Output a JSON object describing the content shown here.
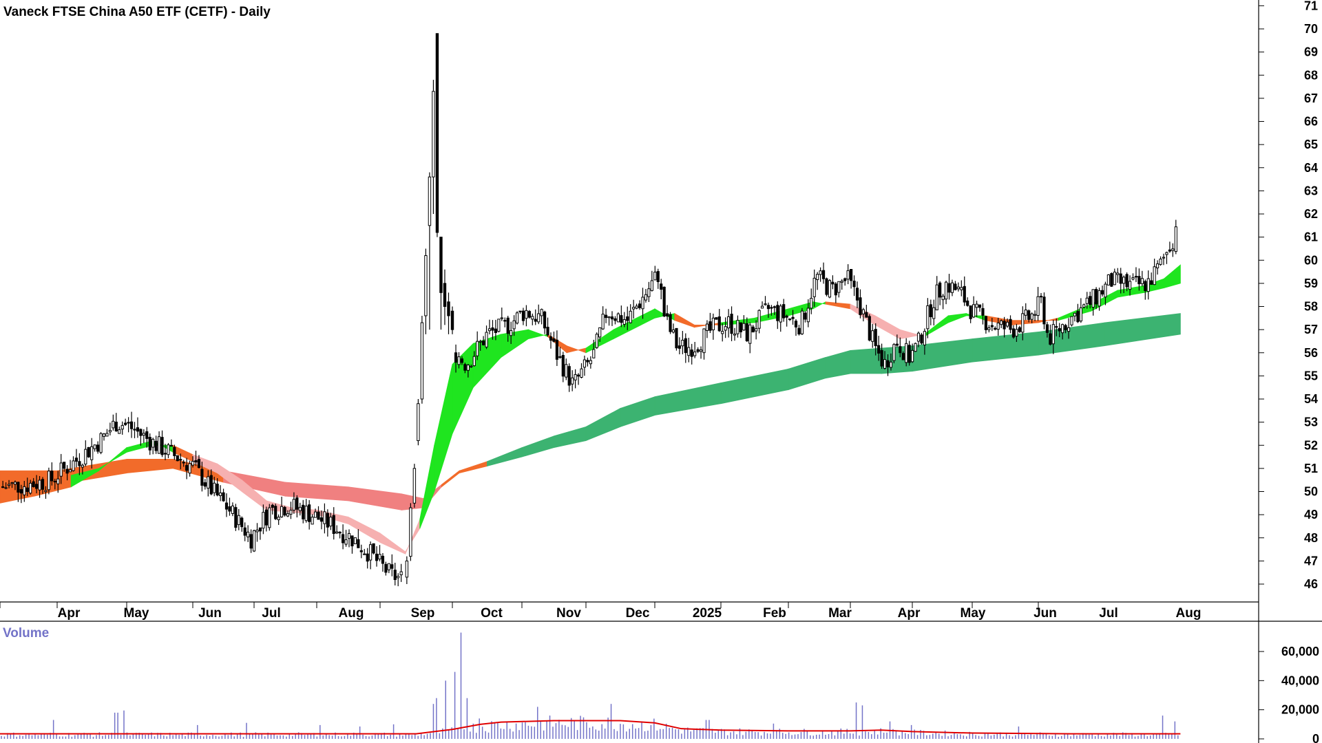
{
  "chart_data": {
    "type": "candlestick",
    "title": "Vaneck FTSE China A50 ETF (CETF) - Daily",
    "price_axis": {
      "ylim": [
        45,
        71.3
      ],
      "ticks": [
        71,
        70,
        69,
        68,
        67,
        66,
        65,
        64,
        63,
        62,
        61,
        60,
        59,
        58,
        57,
        56,
        55,
        54,
        53,
        52,
        51,
        50,
        49,
        48,
        47,
        46
      ]
    },
    "time_axis": {
      "month_labels": [
        "Apr",
        "May",
        "Jun",
        "Jul",
        "Aug",
        "Sep",
        "Oct",
        "Nov",
        "Dec",
        "2025",
        "Feb",
        "Mar",
        "Apr",
        "May",
        "Jun",
        "Jul",
        "Aug"
      ]
    },
    "price_keypoints": [
      {
        "m": 0.0,
        "p": 50.2
      },
      {
        "m": 0.5,
        "p": 50.3
      },
      {
        "m": 0.9,
        "p": 50.5
      },
      {
        "m": 1.3,
        "p": 51.4
      },
      {
        "m": 1.65,
        "p": 52.3
      },
      {
        "m": 1.85,
        "p": 53.0
      },
      {
        "m": 2.05,
        "p": 52.8
      },
      {
        "m": 2.35,
        "p": 52.2
      },
      {
        "m": 2.7,
        "p": 51.6
      },
      {
        "m": 3.0,
        "p": 51.1
      },
      {
        "m": 3.3,
        "p": 50.1
      },
      {
        "m": 3.6,
        "p": 49.2
      },
      {
        "m": 3.95,
        "p": 48.0
      },
      {
        "m": 4.25,
        "p": 49.2
      },
      {
        "m": 4.55,
        "p": 49.4
      },
      {
        "m": 4.85,
        "p": 49.1
      },
      {
        "m": 5.2,
        "p": 48.6
      },
      {
        "m": 5.55,
        "p": 48.0
      },
      {
        "m": 5.85,
        "p": 47.3
      },
      {
        "m": 6.15,
        "p": 46.4
      },
      {
        "m": 6.32,
        "p": 46.2
      }
    ],
    "oct_candles": [
      {
        "o": 46.3,
        "h": 47.2,
        "l": 46.0,
        "c": 47.0
      },
      {
        "o": 47.2,
        "h": 49.5,
        "l": 47.0,
        "c": 49.3
      },
      {
        "o": 49.5,
        "h": 51.2,
        "l": 49.3,
        "c": 51.0
      },
      {
        "o": 52.2,
        "h": 54.0,
        "l": 52.0,
        "c": 53.8
      },
      {
        "o": 54.0,
        "h": 57.6,
        "l": 53.8,
        "c": 57.3
      },
      {
        "o": 57.6,
        "h": 60.5,
        "l": 56.8,
        "c": 60.2
      },
      {
        "o": 61.5,
        "h": 63.8,
        "l": 57.0,
        "c": 63.6
      },
      {
        "o": 63.6,
        "h": 67.8,
        "l": 62.0,
        "c": 67.3
      },
      {
        "o": 69.8,
        "h": 69.8,
        "l": 61.0,
        "c": 61.2
      },
      {
        "o": 61.0,
        "h": 61.0,
        "l": 57.0,
        "c": 58.6
      },
      {
        "o": 59.0,
        "h": 59.6,
        "l": 57.2,
        "c": 58.0
      },
      {
        "o": 58.2,
        "h": 58.6,
        "l": 56.8,
        "c": 57.6
      },
      {
        "o": 57.8,
        "h": 58.0,
        "l": 56.8,
        "c": 57.0
      }
    ],
    "post_keypoints": [
      {
        "m": 7.05,
        "p": 56.0
      },
      {
        "m": 7.2,
        "p": 55.5
      },
      {
        "m": 7.5,
        "p": 56.8
      },
      {
        "m": 7.8,
        "p": 57.2
      },
      {
        "m": 8.05,
        "p": 57.8
      },
      {
        "m": 8.3,
        "p": 57.5
      },
      {
        "m": 8.55,
        "p": 55.9
      },
      {
        "m": 8.8,
        "p": 54.6
      },
      {
        "m": 9.1,
        "p": 55.8
      },
      {
        "m": 9.3,
        "p": 57.8
      },
      {
        "m": 9.6,
        "p": 57.4
      },
      {
        "m": 9.85,
        "p": 58.5
      },
      {
        "m": 10.05,
        "p": 59.4
      },
      {
        "m": 10.15,
        "p": 57.5
      },
      {
        "m": 10.35,
        "p": 56.2
      },
      {
        "m": 10.6,
        "p": 56.3
      },
      {
        "m": 10.9,
        "p": 57.1
      },
      {
        "m": 11.1,
        "p": 57.3
      },
      {
        "m": 11.4,
        "p": 56.8
      },
      {
        "m": 11.7,
        "p": 57.9
      },
      {
        "m": 12.0,
        "p": 57.5
      },
      {
        "m": 12.2,
        "p": 57.2
      },
      {
        "m": 12.45,
        "p": 59.3
      },
      {
        "m": 12.7,
        "p": 58.7
      },
      {
        "m": 12.95,
        "p": 59.2
      },
      {
        "m": 13.15,
        "p": 58.1
      },
      {
        "m": 13.4,
        "p": 56.2
      },
      {
        "m": 13.55,
        "p": 55.5
      },
      {
        "m": 13.75,
        "p": 56.5
      },
      {
        "m": 13.95,
        "p": 55.8
      },
      {
        "m": 14.1,
        "p": 56.4
      },
      {
        "m": 14.35,
        "p": 58.3
      },
      {
        "m": 14.55,
        "p": 59.0
      },
      {
        "m": 14.8,
        "p": 58.6
      },
      {
        "m": 15.0,
        "p": 57.8
      },
      {
        "m": 15.3,
        "p": 57.2
      },
      {
        "m": 15.6,
        "p": 57.0
      },
      {
        "m": 15.9,
        "p": 57.6
      },
      {
        "m": 16.05,
        "p": 58.2
      },
      {
        "m": 16.15,
        "p": 56.6
      },
      {
        "m": 16.45,
        "p": 57.4
      },
      {
        "m": 16.8,
        "p": 58.2
      },
      {
        "m": 17.1,
        "p": 59.1
      },
      {
        "m": 17.4,
        "p": 58.9
      },
      {
        "m": 17.65,
        "p": 59.0
      },
      {
        "m": 17.85,
        "p": 59.8
      },
      {
        "m": 17.95,
        "p": 60.4
      },
      {
        "m": 18.05,
        "p": 61.0
      },
      {
        "m": 18.12,
        "p": 62.0
      }
    ],
    "short_ribbon": [
      {
        "m": 0.0,
        "a": 49.5,
        "b": 50.8,
        "up": false
      },
      {
        "m": 0.6,
        "a": 49.8,
        "b": 50.6,
        "up": false
      },
      {
        "m": 1.2,
        "a": 50.2,
        "b": 50.7,
        "up": true
      },
      {
        "m": 1.6,
        "a": 50.9,
        "b": 51.0,
        "up": true
      },
      {
        "m": 2.0,
        "a": 51.9,
        "b": 51.7,
        "up": true
      },
      {
        "m": 2.4,
        "a": 52.2,
        "b": 52.0,
        "up": true
      },
      {
        "m": 2.7,
        "a": 51.7,
        "b": 52.0,
        "up": false
      },
      {
        "m": 3.0,
        "a": 51.3,
        "b": 51.6,
        "up": false
      },
      {
        "m": 3.4,
        "a": 50.8,
        "b": 51.2,
        "up": false
      },
      {
        "m": 3.8,
        "a": 50.0,
        "b": 50.5,
        "up": false
      },
      {
        "m": 4.2,
        "a": 49.2,
        "b": 49.6,
        "up": false
      },
      {
        "m": 4.6,
        "a": 49.1,
        "b": 49.3,
        "up": false
      },
      {
        "m": 5.0,
        "a": 49.0,
        "b": 49.2,
        "up": false
      },
      {
        "m": 5.5,
        "a": 48.6,
        "b": 48.9,
        "up": false
      },
      {
        "m": 6.0,
        "a": 47.8,
        "b": 48.2,
        "up": false
      },
      {
        "m": 6.35,
        "a": 47.3,
        "b": 47.4,
        "up": false
      },
      {
        "m": 6.55,
        "a": 48.8,
        "b": 48.4,
        "up": true
      },
      {
        "m": 6.75,
        "a": 52.0,
        "b": 50.0,
        "up": true
      },
      {
        "m": 7.0,
        "a": 55.5,
        "b": 52.5,
        "up": true
      },
      {
        "m": 7.3,
        "a": 56.4,
        "b": 54.5,
        "up": true
      },
      {
        "m": 7.7,
        "a": 56.8,
        "b": 55.8,
        "up": true
      },
      {
        "m": 8.1,
        "a": 57.0,
        "b": 56.6,
        "up": true
      },
      {
        "m": 8.4,
        "a": 56.7,
        "b": 56.8,
        "up": false
      },
      {
        "m": 8.7,
        "a": 56.0,
        "b": 56.3,
        "up": false
      },
      {
        "m": 9.0,
        "a": 56.2,
        "b": 56.0,
        "up": true
      },
      {
        "m": 9.4,
        "a": 57.0,
        "b": 56.6,
        "up": true
      },
      {
        "m": 9.8,
        "a": 57.6,
        "b": 57.2,
        "up": true
      },
      {
        "m": 10.0,
        "a": 57.9,
        "b": 57.5,
        "up": true
      },
      {
        "m": 10.3,
        "a": 57.4,
        "b": 57.7,
        "up": false
      },
      {
        "m": 10.6,
        "a": 57.1,
        "b": 57.2,
        "up": false
      },
      {
        "m": 11.0,
        "a": 57.3,
        "b": 57.2,
        "up": true
      },
      {
        "m": 11.5,
        "a": 57.5,
        "b": 57.3,
        "up": true
      },
      {
        "m": 12.0,
        "a": 57.9,
        "b": 57.6,
        "up": true
      },
      {
        "m": 12.4,
        "a": 58.2,
        "b": 57.9,
        "up": true
      },
      {
        "m": 12.6,
        "a": 58.1,
        "b": 58.2,
        "up": false
      },
      {
        "m": 13.0,
        "a": 57.9,
        "b": 58.1,
        "up": false
      },
      {
        "m": 13.4,
        "a": 57.2,
        "b": 57.6,
        "up": false
      },
      {
        "m": 13.8,
        "a": 56.6,
        "b": 57.0,
        "up": false
      },
      {
        "m": 14.2,
        "a": 56.8,
        "b": 56.7,
        "up": true
      },
      {
        "m": 14.6,
        "a": 57.6,
        "b": 57.3,
        "up": true
      },
      {
        "m": 14.9,
        "a": 57.7,
        "b": 57.6,
        "up": true
      },
      {
        "m": 15.2,
        "a": 57.4,
        "b": 57.6,
        "up": false
      },
      {
        "m": 15.6,
        "a": 57.2,
        "b": 57.4,
        "up": false
      },
      {
        "m": 16.0,
        "a": 57.3,
        "b": 57.4,
        "up": false
      },
      {
        "m": 16.3,
        "a": 57.5,
        "b": 57.4,
        "up": true
      },
      {
        "m": 16.8,
        "a": 58.1,
        "b": 57.8,
        "up": true
      },
      {
        "m": 17.2,
        "a": 58.7,
        "b": 58.4,
        "up": true
      },
      {
        "m": 17.6,
        "a": 58.9,
        "b": 58.6,
        "up": true
      },
      {
        "m": 17.9,
        "a": 59.2,
        "b": 58.8,
        "up": true
      },
      {
        "m": 18.15,
        "a": 59.8,
        "b": 59.0,
        "up": true
      }
    ],
    "long_ribbon": [
      {
        "m": 0.0,
        "a": 50.9,
        "b": 50.2,
        "up": false
      },
      {
        "m": 1.0,
        "a": 50.9,
        "b": 50.3,
        "up": false
      },
      {
        "m": 2.0,
        "a": 51.4,
        "b": 50.8,
        "up": false
      },
      {
        "m": 2.7,
        "a": 51.4,
        "b": 51.0,
        "up": false
      },
      {
        "m": 3.5,
        "a": 50.9,
        "b": 50.4,
        "up": false
      },
      {
        "m": 4.5,
        "a": 50.4,
        "b": 49.8,
        "up": false
      },
      {
        "m": 5.5,
        "a": 50.2,
        "b": 49.6,
        "up": false
      },
      {
        "m": 6.3,
        "a": 49.9,
        "b": 49.2,
        "up": false
      },
      {
        "m": 6.6,
        "a": 49.7,
        "b": 49.3,
        "up": false
      },
      {
        "m": 6.85,
        "a": 50.3,
        "b": 50.2,
        "up": false
      },
      {
        "m": 7.1,
        "a": 50.9,
        "b": 50.8,
        "up": false
      },
      {
        "m": 7.5,
        "a": 51.3,
        "b": 51.1,
        "up": true
      },
      {
        "m": 8.0,
        "a": 51.9,
        "b": 51.5,
        "up": true
      },
      {
        "m": 8.5,
        "a": 52.4,
        "b": 51.9,
        "up": true
      },
      {
        "m": 9.0,
        "a": 52.8,
        "b": 52.2,
        "up": true
      },
      {
        "m": 9.5,
        "a": 53.6,
        "b": 52.8,
        "up": true
      },
      {
        "m": 10.0,
        "a": 54.1,
        "b": 53.3,
        "up": true
      },
      {
        "m": 11.0,
        "a": 54.7,
        "b": 53.8,
        "up": true
      },
      {
        "m": 12.0,
        "a": 55.3,
        "b": 54.4,
        "up": true
      },
      {
        "m": 12.6,
        "a": 55.8,
        "b": 54.9,
        "up": true
      },
      {
        "m": 13.0,
        "a": 56.1,
        "b": 55.1,
        "up": true
      },
      {
        "m": 13.5,
        "a": 56.2,
        "b": 55.1,
        "up": true
      },
      {
        "m": 14.0,
        "a": 56.3,
        "b": 55.2,
        "up": true
      },
      {
        "m": 15.0,
        "a": 56.6,
        "b": 55.6,
        "up": true
      },
      {
        "m": 16.0,
        "a": 56.9,
        "b": 55.9,
        "up": true
      },
      {
        "m": 17.0,
        "a": 57.3,
        "b": 56.3,
        "up": true
      },
      {
        "m": 18.15,
        "a": 57.7,
        "b": 56.8,
        "up": true
      }
    ],
    "ribbon_colors": {
      "short_up": "#1fe51f",
      "short_down_early": "#f26b2a",
      "short_down_late": "#f6b0b0",
      "long_up": "#3cb371",
      "long_down": "#f26b2a",
      "long_down_2": "#f08080"
    },
    "volume": {
      "label": "Volume",
      "ticks": [
        "60,000",
        "40,000",
        "20,000",
        "0"
      ],
      "ylim": [
        0,
        76000
      ],
      "bar_color": "#7373c8",
      "ma_color": "#e00000",
      "spikes": [
        {
          "m": 0.95,
          "v": 13000
        },
        {
          "m": 1.85,
          "v": 18000
        },
        {
          "m": 1.95,
          "v": 19500
        },
        {
          "m": 3.1,
          "v": 9500
        },
        {
          "m": 3.9,
          "v": 11000
        },
        {
          "m": 5.05,
          "v": 9500
        },
        {
          "m": 5.7,
          "v": 8500
        },
        {
          "m": 6.2,
          "v": 10000
        },
        {
          "m": 6.72,
          "v": 24000
        },
        {
          "m": 6.8,
          "v": 28000
        },
        {
          "m": 6.9,
          "v": 40000
        },
        {
          "m": 7.02,
          "v": 46000
        },
        {
          "m": 7.12,
          "v": 73000
        },
        {
          "m": 7.22,
          "v": 28000
        },
        {
          "m": 7.4,
          "v": 14000
        },
        {
          "m": 8.25,
          "v": 22000
        },
        {
          "m": 9.35,
          "v": 24000
        },
        {
          "m": 10.8,
          "v": 13000
        },
        {
          "m": 11.8,
          "v": 10500
        },
        {
          "m": 13.1,
          "v": 25000
        },
        {
          "m": 13.2,
          "v": 23000
        },
        {
          "m": 13.65,
          "v": 12000
        },
        {
          "m": 14.0,
          "v": 9500
        },
        {
          "m": 15.7,
          "v": 8500
        },
        {
          "m": 17.9,
          "v": 16000
        },
        {
          "m": 18.05,
          "v": 12000
        }
      ],
      "ma": [
        {
          "m": 0,
          "v": 3500
        },
        {
          "m": 6.5,
          "v": 3500
        },
        {
          "m": 7.0,
          "v": 6500
        },
        {
          "m": 7.4,
          "v": 10000
        },
        {
          "m": 7.7,
          "v": 11500
        },
        {
          "m": 8.5,
          "v": 12500
        },
        {
          "m": 9.5,
          "v": 12500
        },
        {
          "m": 10.0,
          "v": 11000
        },
        {
          "m": 10.4,
          "v": 7000
        },
        {
          "m": 11.0,
          "v": 6000
        },
        {
          "m": 12.0,
          "v": 5500
        },
        {
          "m": 13.0,
          "v": 5500
        },
        {
          "m": 13.5,
          "v": 6000
        },
        {
          "m": 14.0,
          "v": 5000
        },
        {
          "m": 15.0,
          "v": 4000
        },
        {
          "m": 16.5,
          "v": 3500
        },
        {
          "m": 18.15,
          "v": 3500
        }
      ]
    }
  }
}
